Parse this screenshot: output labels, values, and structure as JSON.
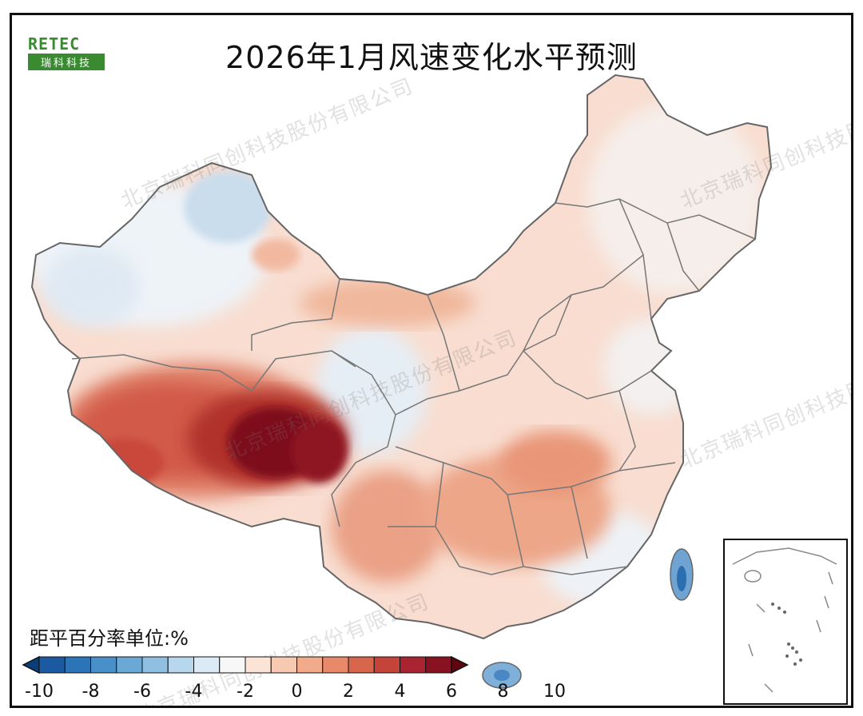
{
  "title": "2026年1月风速变化水平预测",
  "logo": {
    "text_top": "RETEC",
    "text_bottom": "瑞科科技"
  },
  "watermark": "北京瑞科同创科技股份有限公司",
  "legend": {
    "title": "距平百分率单位:%",
    "ticks": [
      "-10",
      "-8",
      "-6",
      "-4",
      "-2",
      "0",
      "2",
      "4",
      "6",
      "8",
      "10"
    ],
    "colors": [
      "#0b3d7a",
      "#1b5aa0",
      "#2c74b8",
      "#4a90c8",
      "#6aa8d6",
      "#8fc0e2",
      "#b7d7ee",
      "#dceaf5",
      "#f7f7f7",
      "#fbe3d6",
      "#f7c9b0",
      "#f1ab8a",
      "#e88a6a",
      "#d8664c",
      "#c4443a",
      "#a82430",
      "#881222",
      "#5e0510"
    ]
  }
}
